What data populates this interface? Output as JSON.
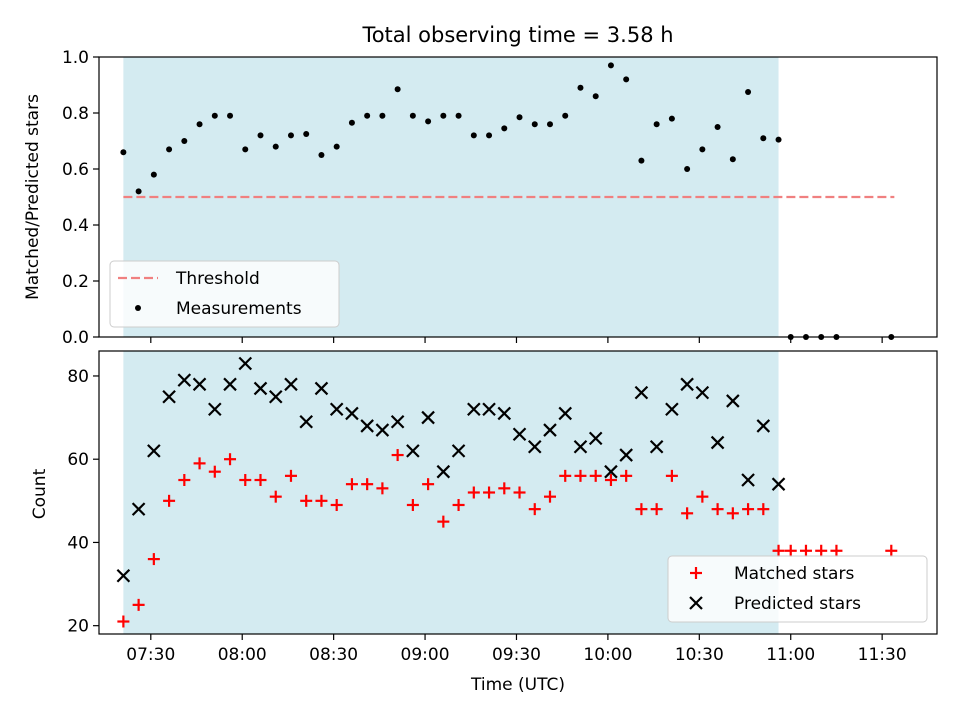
{
  "chart_data": [
    {
      "type": "scatter",
      "title": "Total observing time = 3.58 h",
      "xlabel": "",
      "ylabel": "Matched/Predicted stars",
      "xlim": [
        "07:13",
        "11:48"
      ],
      "ylim": [
        0,
        1.0
      ],
      "yticks": [
        0.0,
        0.2,
        0.4,
        0.6,
        0.8,
        1.0
      ],
      "ytick_labels": [
        "0.0",
        "0.2",
        "0.4",
        "0.6",
        "0.8",
        "1.0"
      ],
      "xticks": [
        "07:30",
        "08:00",
        "08:30",
        "09:00",
        "09:30",
        "10:00",
        "10:30",
        "11:00",
        "11:30"
      ],
      "shaded_region": [
        "07:21",
        "10:56"
      ],
      "shade_color": "#d4ebf1",
      "legend": {
        "placement": "lower-left",
        "entries": [
          "Threshold",
          "Measurements"
        ]
      },
      "series": [
        {
          "name": "Threshold",
          "kind": "dashed-line",
          "color": "#f08080",
          "x": [
            "07:21",
            "11:34"
          ],
          "y": [
            0.5,
            0.5
          ]
        },
        {
          "name": "Measurements",
          "kind": "dots",
          "color": "#000000",
          "x": [
            "07:21",
            "07:26",
            "07:31",
            "07:36",
            "07:41",
            "07:46",
            "07:51",
            "07:56",
            "08:01",
            "08:06",
            "08:11",
            "08:16",
            "08:21",
            "08:26",
            "08:31",
            "08:36",
            "08:41",
            "08:46",
            "08:51",
            "08:56",
            "09:01",
            "09:06",
            "09:11",
            "09:16",
            "09:21",
            "09:26",
            "09:31",
            "09:36",
            "09:41",
            "09:46",
            "09:51",
            "09:56",
            "10:01",
            "10:06",
            "10:11",
            "10:16",
            "10:21",
            "10:26",
            "10:31",
            "10:36",
            "10:41",
            "10:46",
            "10:51",
            "10:56",
            "11:00",
            "11:05",
            "11:10",
            "11:15",
            "11:33"
          ],
          "y": [
            0.66,
            0.52,
            0.58,
            0.67,
            0.7,
            0.76,
            0.79,
            0.79,
            0.67,
            0.72,
            0.68,
            0.72,
            0.725,
            0.65,
            0.68,
            0.765,
            0.79,
            0.79,
            0.885,
            0.79,
            0.77,
            0.79,
            0.79,
            0.72,
            0.72,
            0.745,
            0.785,
            0.76,
            0.76,
            0.79,
            0.89,
            0.86,
            0.97,
            0.92,
            0.63,
            0.76,
            0.78,
            0.6,
            0.67,
            0.75,
            0.635,
            0.875,
            0.71,
            0.705,
            0.0,
            0.0,
            0.0,
            0.0,
            0.0
          ]
        }
      ]
    },
    {
      "type": "scatter",
      "title": "",
      "xlabel": "Time (UTC)",
      "ylabel": "Count",
      "xlim": [
        "07:13",
        "11:48"
      ],
      "ylim": [
        18,
        86
      ],
      "yticks": [
        20,
        40,
        60,
        80
      ],
      "ytick_labels": [
        "20",
        "40",
        "60",
        "80"
      ],
      "xticks": [
        "07:30",
        "08:00",
        "08:30",
        "09:00",
        "09:30",
        "10:00",
        "10:30",
        "11:00",
        "11:30"
      ],
      "shaded_region": [
        "07:21",
        "10:56"
      ],
      "shade_color": "#d4ebf1",
      "legend": {
        "placement": "lower-right",
        "entries": [
          "Matched stars",
          "Predicted stars"
        ]
      },
      "series": [
        {
          "name": "Matched stars",
          "marker": "plus",
          "color": "#ff0000",
          "x": [
            "07:21",
            "07:26",
            "07:31",
            "07:36",
            "07:41",
            "07:46",
            "07:51",
            "07:56",
            "08:01",
            "08:06",
            "08:11",
            "08:16",
            "08:21",
            "08:26",
            "08:31",
            "08:36",
            "08:41",
            "08:46",
            "08:51",
            "08:56",
            "09:01",
            "09:06",
            "09:11",
            "09:16",
            "09:21",
            "09:26",
            "09:31",
            "09:36",
            "09:41",
            "09:46",
            "09:51",
            "09:56",
            "10:01",
            "10:06",
            "10:11",
            "10:16",
            "10:21",
            "10:26",
            "10:31",
            "10:36",
            "10:41",
            "10:46",
            "10:51",
            "10:56",
            "11:00",
            "11:05",
            "11:10",
            "11:15",
            "11:33"
          ],
          "y": [
            21,
            25,
            36,
            50,
            55,
            59,
            57,
            60,
            55,
            55,
            51,
            56,
            50,
            50,
            49,
            54,
            54,
            53,
            61,
            49,
            54,
            45,
            49,
            52,
            52,
            53,
            52,
            48,
            51,
            56,
            56,
            56,
            55,
            56,
            48,
            48,
            56,
            47,
            51,
            48,
            47,
            48,
            48,
            38,
            38,
            38,
            38,
            38,
            38
          ]
        },
        {
          "name": "Predicted stars",
          "marker": "x",
          "color": "#000000",
          "x": [
            "07:21",
            "07:26",
            "07:31",
            "07:36",
            "07:41",
            "07:46",
            "07:51",
            "07:56",
            "08:01",
            "08:06",
            "08:11",
            "08:16",
            "08:21",
            "08:26",
            "08:31",
            "08:36",
            "08:41",
            "08:46",
            "08:51",
            "08:56",
            "09:01",
            "09:06",
            "09:11",
            "09:16",
            "09:21",
            "09:26",
            "09:31",
            "09:36",
            "09:41",
            "09:46",
            "09:51",
            "09:56",
            "10:01",
            "10:06",
            "10:11",
            "10:16",
            "10:21",
            "10:26",
            "10:31",
            "10:36",
            "10:41",
            "10:46",
            "10:51",
            "10:56"
          ],
          "y": [
            32,
            48,
            62,
            75,
            79,
            78,
            72,
            78,
            83,
            77,
            75,
            78,
            69,
            77,
            72,
            71,
            68,
            67,
            69,
            62,
            70,
            57,
            62,
            72,
            72,
            71,
            66,
            63,
            67,
            71,
            63,
            65,
            57,
            61,
            76,
            63,
            72,
            78,
            76,
            64,
            74,
            55,
            68,
            54
          ]
        }
      ]
    }
  ]
}
